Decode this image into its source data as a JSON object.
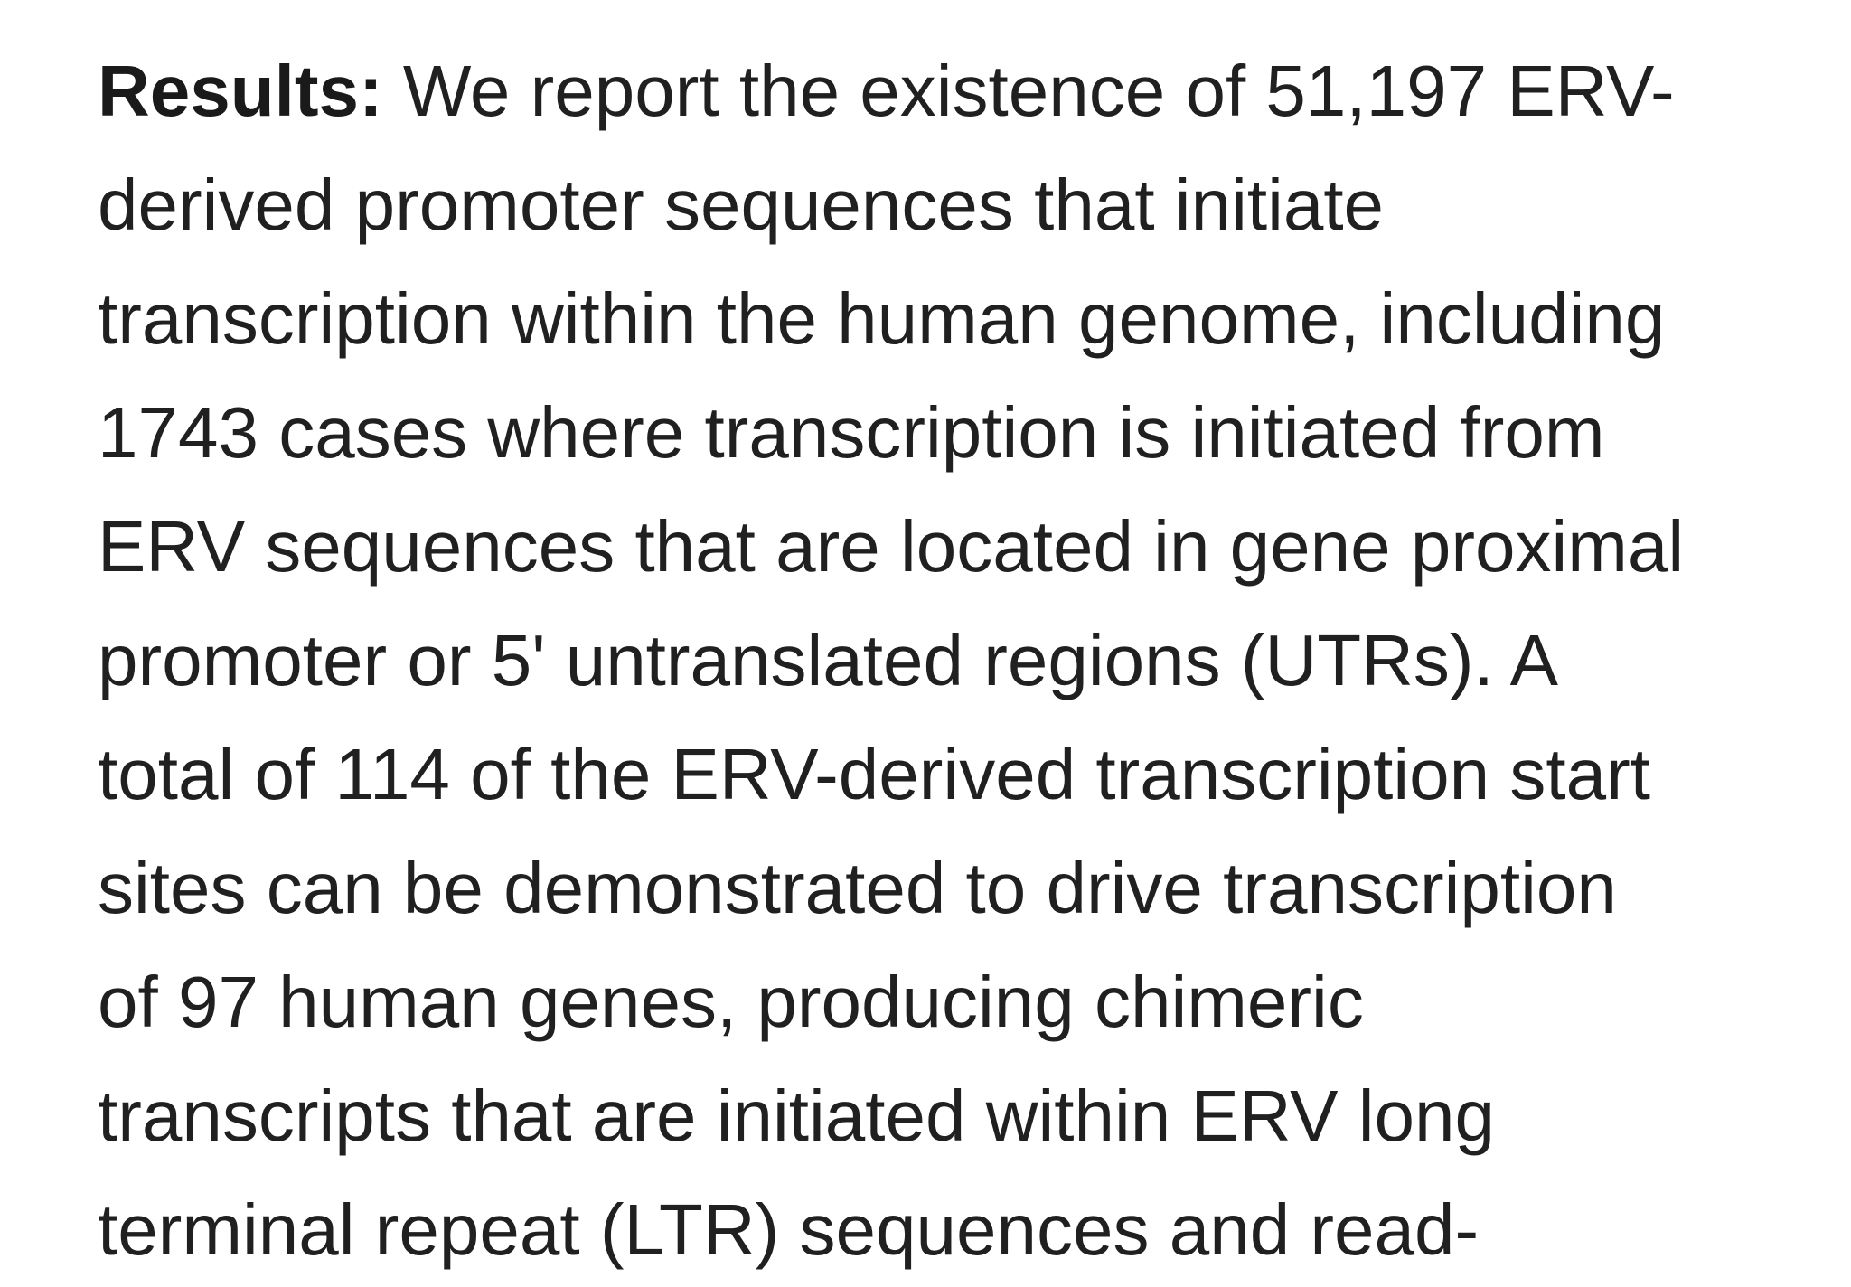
{
  "results": {
    "label": "Results:",
    "lines": [
      " We report the existence of 51,197 ERV-",
      "derived promoter sequences that initiate",
      "transcription within the human genome, including",
      "1743 cases where transcription is initiated from",
      "ERV sequences that are located in gene proximal",
      "promoter or 5' untranslated regions (UTRs). A",
      "total of 114 of the ERV-derived transcription start",
      "sites can be demonstrated to drive transcription",
      "of 97 human genes, producing chimeric",
      "transcripts that are initiated within ERV long",
      "terminal repeat (LTR) sequences and read-"
    ]
  }
}
